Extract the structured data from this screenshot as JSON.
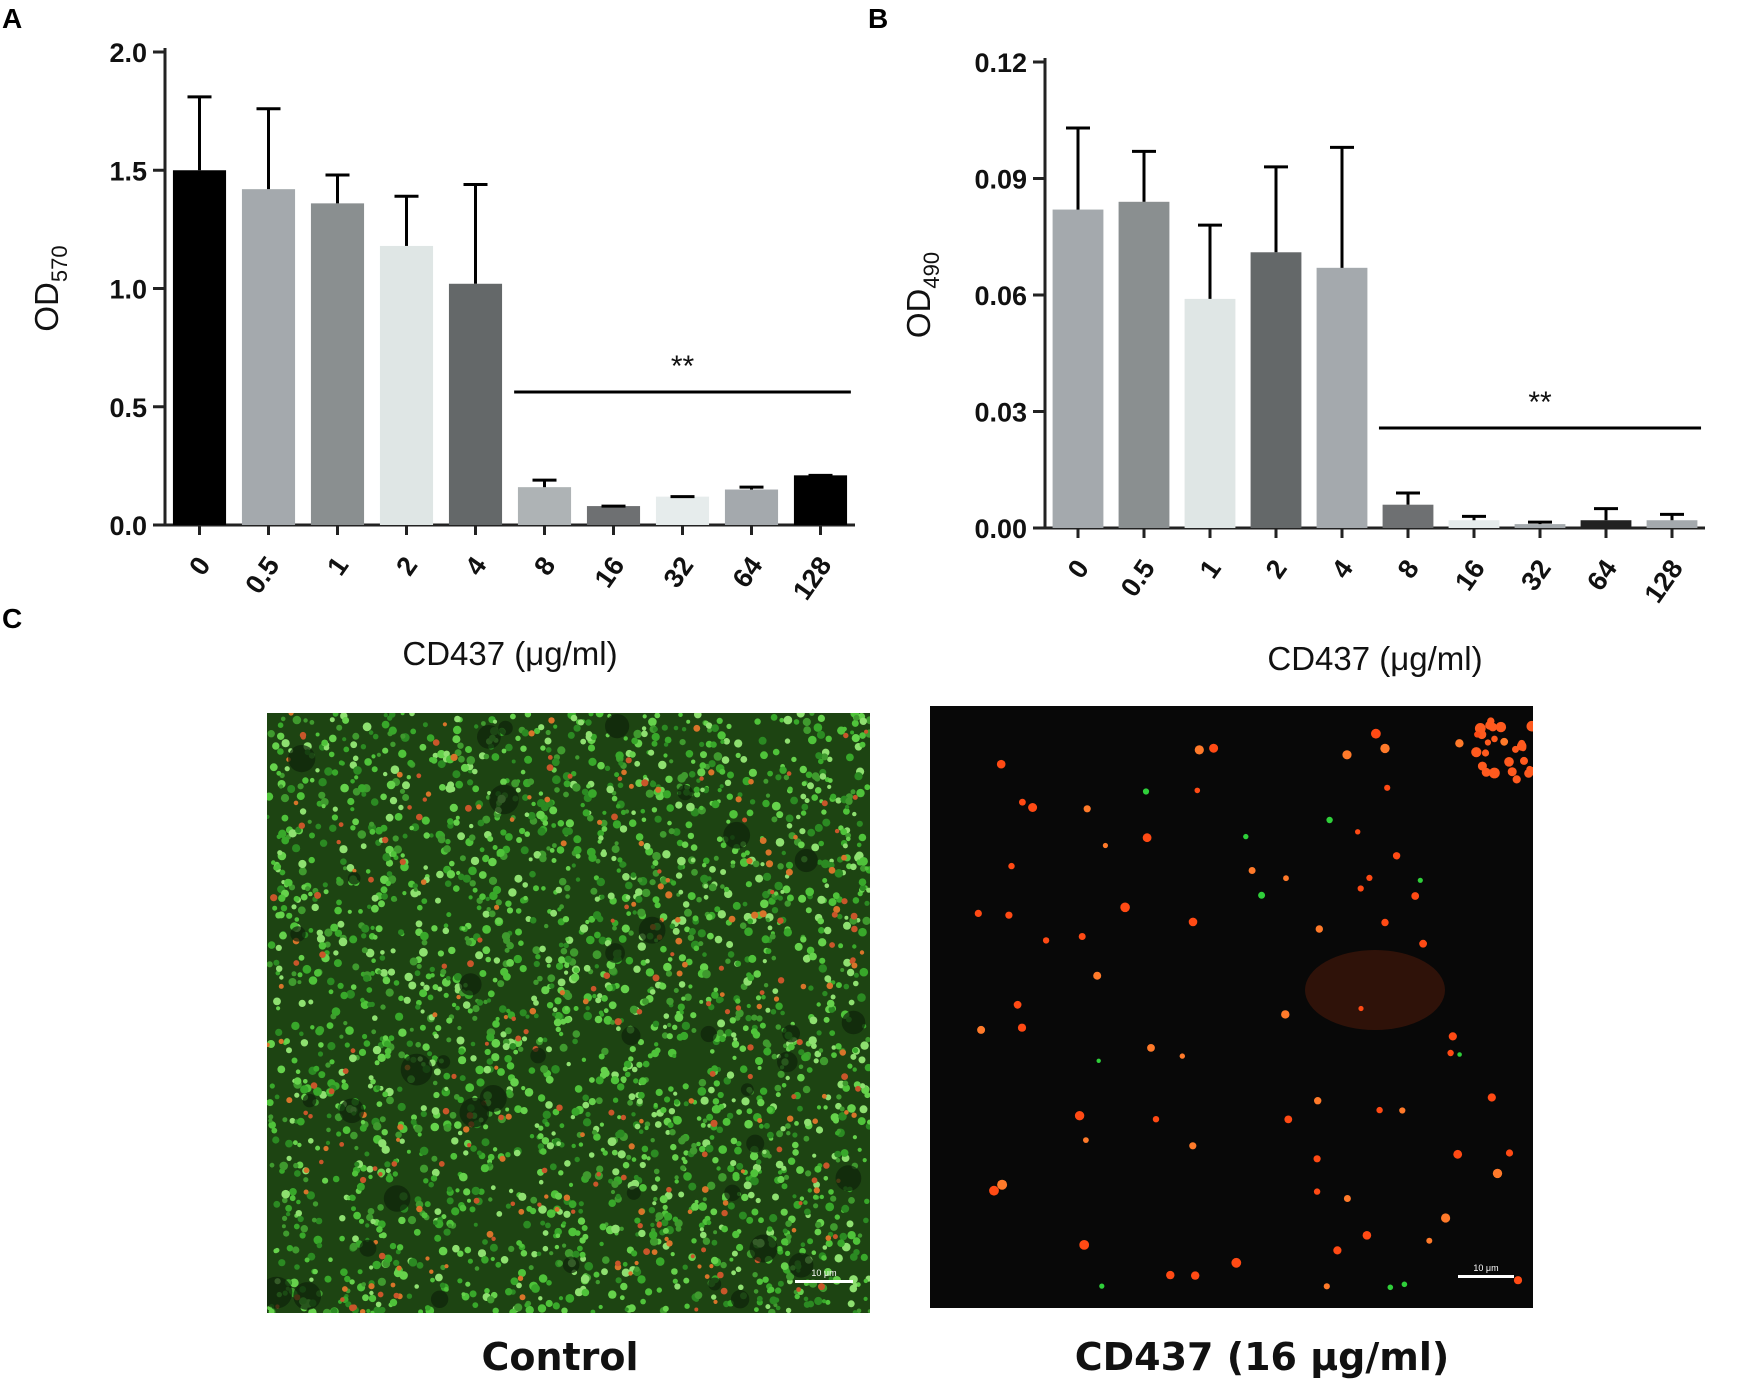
{
  "panels": {
    "a": {
      "letter": "A"
    },
    "b": {
      "letter": "B"
    },
    "c": {
      "letter": "C",
      "images": [
        {
          "caption": "Control",
          "scale_label": "10 μm",
          "dominant_stain": "green"
        },
        {
          "caption": "CD437 (16 μg/ml)",
          "scale_label": "10 μm",
          "dominant_stain": "red"
        }
      ]
    }
  },
  "chart_data": [
    {
      "type": "bar",
      "panel": "A",
      "categories": [
        "0",
        "0.5",
        "1",
        "2",
        "4",
        "8",
        "16",
        "32",
        "64",
        "128"
      ],
      "values": [
        1.5,
        1.42,
        1.36,
        1.18,
        1.02,
        0.16,
        0.08,
        0.12,
        0.15,
        0.21
      ],
      "errors": [
        0.31,
        0.34,
        0.12,
        0.21,
        0.42,
        0.03,
        0.0,
        0.0,
        0.01,
        0.0
      ],
      "colors": [
        "#000000",
        "#a4a9ad",
        "#8a8f90",
        "#dfe6e5",
        "#646869",
        "#aeb3b5",
        "#6e7072",
        "#e6ecec",
        "#a4a9ad",
        "#000000"
      ],
      "xlabel": "CD437 (μg/ml)",
      "ylabel_main": "OD",
      "ylabel_sub": "570",
      "ylim": [
        0,
        2.0
      ],
      "yticks": [
        "0.0",
        "0.5",
        "1.0",
        "1.5",
        "2.0"
      ],
      "significance": {
        "label": "**",
        "from_category": "8",
        "to_category": "128"
      },
      "grid": false,
      "legend": "none"
    },
    {
      "type": "bar",
      "panel": "B",
      "categories": [
        "0",
        "0.5",
        "1",
        "2",
        "4",
        "8",
        "16",
        "32",
        "64",
        "128"
      ],
      "values": [
        0.082,
        0.084,
        0.059,
        0.071,
        0.067,
        0.006,
        0.002,
        0.001,
        0.002,
        0.002
      ],
      "errors": [
        0.021,
        0.013,
        0.019,
        0.022,
        0.031,
        0.003,
        0.001,
        0.0005,
        0.003,
        0.0015
      ],
      "colors": [
        "#a4a9ad",
        "#8a8f90",
        "#dfe6e5",
        "#646869",
        "#a4a9ad",
        "#6e7072",
        "#e6ecec",
        "#a4a9ad",
        "#222222",
        "#a4a9ad"
      ],
      "xlabel": "CD437 (μg/ml)",
      "ylabel_main": "OD",
      "ylabel_sub": "490",
      "ylim": [
        0,
        0.12
      ],
      "yticks": [
        "0.00",
        "0.03",
        "0.06",
        "0.09",
        "0.12"
      ],
      "significance": {
        "label": "**",
        "from_category": "8",
        "to_category": "128"
      },
      "grid": false,
      "legend": "none"
    }
  ]
}
